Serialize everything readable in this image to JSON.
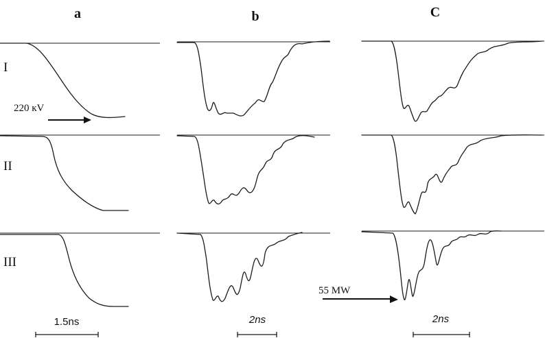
{
  "columns": [
    {
      "label": "a"
    },
    {
      "label": "b"
    },
    {
      "label": "C"
    }
  ],
  "rows": [
    {
      "label": "I"
    },
    {
      "label": "II"
    },
    {
      "label": "III"
    }
  ],
  "annotations": {
    "voltage": "220 кV",
    "power": "55 MW"
  },
  "scale_bars": [
    {
      "label": "1.5ns"
    },
    {
      "label": "2ns"
    },
    {
      "label": "2ns"
    }
  ]
}
